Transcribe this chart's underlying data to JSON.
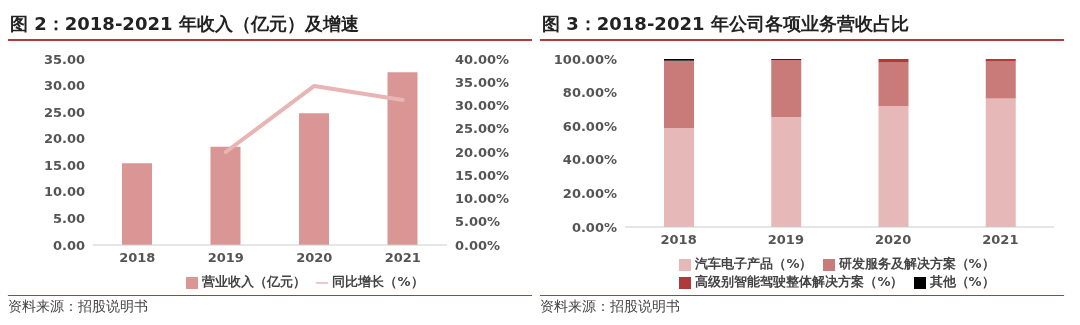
{
  "chart_data": [
    {
      "type": "bar",
      "title": "图 2：2018-2021 年收入（亿元）及增速",
      "categories": [
        "2018",
        "2019",
        "2020",
        "2021"
      ],
      "series": [
        {
          "name": "营业收入（亿元）",
          "color": "#d99694",
          "values": [
            15.4,
            18.5,
            24.8,
            32.5
          ]
        },
        {
          "name": "同比增长（%）",
          "type": "line",
          "axis": "y2",
          "color": "#e8b4b4",
          "values": [
            null,
            20,
            34.2,
            31.2
          ]
        }
      ],
      "ylim": [
        0,
        35
      ],
      "yticks": [
        {
          "value": 0,
          "label": "0.00"
        },
        {
          "value": 5,
          "label": "5.00"
        },
        {
          "value": 10,
          "label": "10.00"
        },
        {
          "value": 15,
          "label": "15.00"
        },
        {
          "value": 20,
          "label": "20.00"
        },
        {
          "value": 25,
          "label": "25.00"
        },
        {
          "value": 30,
          "label": "30.00"
        },
        {
          "value": 35,
          "label": "35.00"
        }
      ],
      "y2lim": [
        0,
        40
      ],
      "y2ticks": [
        {
          "value": 0,
          "label": "0.00%"
        },
        {
          "value": 5,
          "label": "5.00%"
        },
        {
          "value": 10,
          "label": "10.00%"
        },
        {
          "value": 15,
          "label": "15.00%"
        },
        {
          "value": 20,
          "label": "20.00%"
        },
        {
          "value": 25,
          "label": "25.00%"
        },
        {
          "value": 30,
          "label": "30.00%"
        },
        {
          "value": 35,
          "label": "35.00%"
        },
        {
          "value": 40,
          "label": "40.00%"
        }
      ],
      "marker": "none",
      "line_style": "solid",
      "legend": "bottom",
      "annotations": [
        "资料来源：招股说明书"
      ]
    },
    {
      "type": "bar",
      "stacked": true,
      "title": "图 3：2018-2021 年公司各项业务营收占比",
      "categories": [
        "2018",
        "2019",
        "2020",
        "2021"
      ],
      "series": [
        {
          "name": "汽车电子产品（%）",
          "color": "#e6b8b7",
          "values": [
            59,
            65.5,
            72,
            76.5
          ]
        },
        {
          "name": "研发服务及解决方案（%）",
          "color": "#c97b79",
          "values": [
            40,
            34,
            26,
            22
          ]
        },
        {
          "name": "高级别智能驾驶整体解决方案（%）",
          "color": "#b03a3a",
          "values": [
            0,
            0,
            2,
            1.5
          ]
        },
        {
          "name": "其他（%）",
          "color": "#000000",
          "values": [
            1,
            0.5,
            0,
            0
          ]
        }
      ],
      "ylim": [
        0,
        100
      ],
      "yticks": [
        {
          "value": 0,
          "label": "0.00%"
        },
        {
          "value": 20,
          "label": "20.00%"
        },
        {
          "value": 40,
          "label": "40.00%"
        },
        {
          "value": 60,
          "label": "60.00%"
        },
        {
          "value": 80,
          "label": "80.00%"
        },
        {
          "value": 100,
          "label": "100.00%"
        }
      ],
      "legend": "bottom",
      "annotations": [
        "资料来源：招股说明书"
      ]
    }
  ]
}
